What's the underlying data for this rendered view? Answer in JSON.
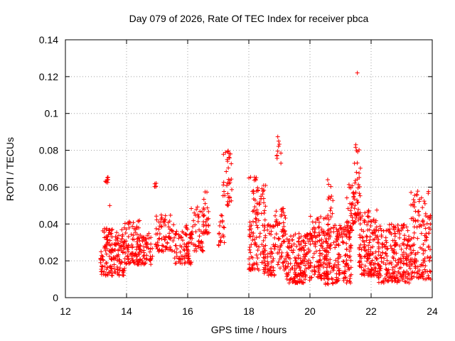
{
  "chart_data": {
    "type": "scatter",
    "title": "Day 079 of 2026, Rate Of TEC Index for receiver pbca",
    "xlabel": "GPS time / hours",
    "ylabel": "ROTI / TECUs",
    "xlim": [
      12,
      24
    ],
    "ylim": [
      0,
      0.14
    ],
    "xticks": [
      12,
      14,
      16,
      18,
      20,
      22,
      24
    ],
    "xtick_labels": [
      "12",
      "14",
      "16",
      "18",
      "20",
      "22",
      "24"
    ],
    "yticks": [
      0,
      0.02,
      0.04,
      0.06,
      0.08,
      0.1,
      0.12,
      0.14
    ],
    "ytick_labels": [
      "0",
      "0.02",
      "0.04",
      "0.06",
      "0.08",
      "0.1",
      "0.12",
      "0.14"
    ],
    "grid": true,
    "marker": "+",
    "marker_color": "#ff0000",
    "clusters": [
      {
        "x": [
          13.15,
          13.95
        ],
        "y": [
          0.012,
          0.038
        ],
        "count": 170
      },
      {
        "x": [
          13.3,
          13.4
        ],
        "y": [
          0.062,
          0.066
        ],
        "count": 8
      },
      {
        "x": [
          13.95,
          14.45
        ],
        "y": [
          0.018,
          0.042
        ],
        "count": 90
      },
      {
        "x": [
          14.4,
          14.85
        ],
        "y": [
          0.018,
          0.035
        ],
        "count": 60
      },
      {
        "x": [
          14.9,
          14.97
        ],
        "y": [
          0.06,
          0.063
        ],
        "count": 5
      },
      {
        "x": [
          14.95,
          15.5
        ],
        "y": [
          0.025,
          0.045
        ],
        "count": 70
      },
      {
        "x": [
          15.5,
          16.15
        ],
        "y": [
          0.018,
          0.04
        ],
        "count": 90
      },
      {
        "x": [
          16.1,
          16.55
        ],
        "y": [
          0.025,
          0.05
        ],
        "count": 50
      },
      {
        "x": [
          16.5,
          16.7
        ],
        "y": [
          0.035,
          0.061
        ],
        "count": 25
      },
      {
        "x": [
          17.0,
          17.2
        ],
        "y": [
          0.028,
          0.05
        ],
        "count": 20
      },
      {
        "x": [
          17.15,
          17.45
        ],
        "y": [
          0.05,
          0.08
        ],
        "count": 35
      },
      {
        "x": [
          18.0,
          18.55
        ],
        "y": [
          0.015,
          0.066
        ],
        "count": 120
      },
      {
        "x": [
          18.5,
          18.85
        ],
        "y": [
          0.012,
          0.04
        ],
        "count": 60
      },
      {
        "x": [
          18.85,
          19.2
        ],
        "y": [
          0.015,
          0.05
        ],
        "count": 60
      },
      {
        "x": [
          18.9,
          19.08
        ],
        "y": [
          0.074,
          0.092
        ],
        "count": 9
      },
      {
        "x": [
          19.2,
          20.0
        ],
        "y": [
          0.008,
          0.035
        ],
        "count": 170
      },
      {
        "x": [
          20.0,
          20.6
        ],
        "y": [
          0.01,
          0.045
        ],
        "count": 130
      },
      {
        "x": [
          20.5,
          20.75
        ],
        "y": [
          0.007,
          0.064
        ],
        "count": 60
      },
      {
        "x": [
          20.75,
          21.35
        ],
        "y": [
          0.008,
          0.04
        ],
        "count": 130
      },
      {
        "x": [
          21.2,
          21.45
        ],
        "y": [
          0.035,
          0.062
        ],
        "count": 35
      },
      {
        "x": [
          21.45,
          21.65
        ],
        "y": [
          0.04,
          0.083
        ],
        "count": 40
      },
      {
        "x": [
          21.6,
          22.2
        ],
        "y": [
          0.012,
          0.048
        ],
        "count": 140
      },
      {
        "x": [
          22.2,
          23.3
        ],
        "y": [
          0.008,
          0.04
        ],
        "count": 240
      },
      {
        "x": [
          23.3,
          23.95
        ],
        "y": [
          0.01,
          0.058
        ],
        "count": 140
      }
    ],
    "outliers": [
      {
        "x": 21.55,
        "y": 0.122
      },
      {
        "x": 13.45,
        "y": 0.05
      },
      {
        "x": 19.05,
        "y": 0.073
      },
      {
        "x": 21.5,
        "y": 0.083
      },
      {
        "x": 21.52,
        "y": 0.068
      },
      {
        "x": 20.58,
        "y": 0.064
      },
      {
        "x": 17.4,
        "y": 0.078
      }
    ]
  }
}
